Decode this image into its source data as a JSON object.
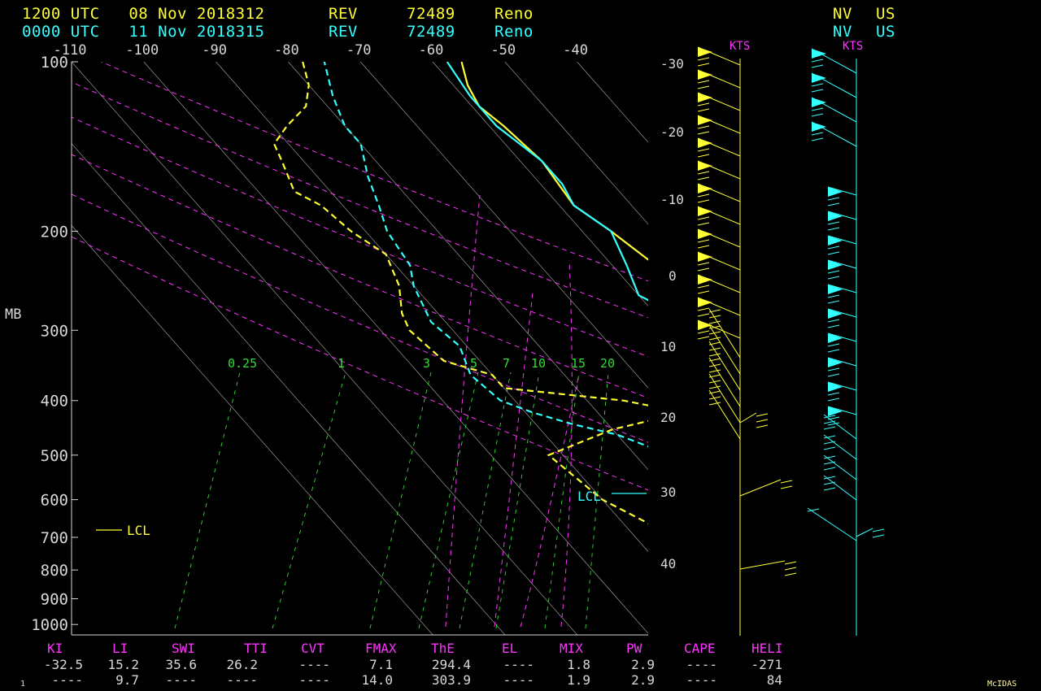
{
  "header": {
    "rows": [
      {
        "time": "1200 UTC",
        "date": "08 Nov 2018312",
        "kind": "REV",
        "station": "72489",
        "city": "Reno",
        "state": "NV",
        "country": "US",
        "color": "#ffff33"
      },
      {
        "time": "0000 UTC",
        "date": "11 Nov 2018315",
        "kind": "REV",
        "station": "72489",
        "city": "Reno",
        "state": "NV",
        "country": "US",
        "color": "#33ffff"
      }
    ]
  },
  "kts_label": "KTS",
  "mb_label": "MB",
  "footer_left": "1",
  "footer_right": "McIDAS",
  "colors": {
    "obs1": "#ffff33",
    "obs2": "#33ffff",
    "isotherm": "#b0b0b0",
    "adiabat": "#ff33ff",
    "mixing": "#33dd33",
    "text": "#d8d8d8",
    "label": "#ff33ff"
  },
  "indices": {
    "labels": [
      "KI",
      "LI",
      "SWI",
      "TTI",
      "CVT",
      "FMAX",
      "ThE",
      "EL",
      "MIX",
      "PW",
      "CAPE",
      "HELI"
    ],
    "row1": [
      "-32.5",
      "15.2",
      "35.6",
      "26.2",
      "----",
      "7.1",
      "294.4",
      "----",
      "1.8",
      "2.9",
      "----",
      "-271"
    ],
    "row2": [
      "----",
      "9.7",
      "----",
      "----",
      "----",
      "14.0",
      "303.9",
      "----",
      "1.9",
      "2.9",
      "----",
      "84"
    ]
  },
  "chart_data": {
    "type": "skew-t",
    "ylabel": "MB",
    "pressure_ticks": [
      "100",
      "200",
      "300",
      "400",
      "500",
      "600",
      "700",
      "800",
      "900",
      "1000"
    ],
    "temp_ticks": [
      "-110",
      "-100",
      "-90",
      "-80",
      "-70",
      "-60",
      "-50",
      "-40"
    ],
    "skewed_temp_labels": [
      "-30",
      "-20",
      "-10",
      "0",
      "10",
      "20",
      "30",
      "40"
    ],
    "mixing_ratio_labels": [
      "0.25",
      "1",
      "3",
      "5",
      "7",
      "10",
      "15",
      "20"
    ],
    "lcl_label": "LCL",
    "series": [
      {
        "name": "1200 UTC 08 Nov",
        "kind": "temperature",
        "p": [
          850,
          760,
          700,
          660,
          640,
          600,
          560,
          500,
          460,
          430,
          400,
          360,
          320,
          280,
          250,
          230,
          200,
          180,
          150,
          130,
          120,
          110,
          100
        ],
        "t": [
          -5,
          -6,
          -11,
          -13,
          -14,
          -16,
          -19,
          -24,
          -28,
          -32,
          -36,
          -42,
          -48,
          -53,
          -55,
          -54,
          -56,
          -58,
          -57,
          -58,
          -59,
          -58,
          -56
        ]
      },
      {
        "name": "1200 UTC 08 Nov",
        "kind": "dewpoint",
        "p": [
          850,
          800,
          760,
          720,
          710,
          700,
          690,
          600,
          500,
          450,
          420,
          400,
          380,
          360,
          340,
          300,
          280,
          250,
          220,
          200,
          180,
          170,
          150,
          140,
          130,
          120,
          110,
          100
        ],
        "t": [
          -40,
          -40,
          -39,
          -38,
          -45,
          -75,
          -85,
          -90,
          -92,
          -80,
          -68,
          -75,
          -90,
          -90,
          -95,
          -96,
          -95,
          -92,
          -90,
          -92,
          -93,
          -95,
          -93,
          -92,
          -88,
          -83,
          -80,
          -78
        ]
      },
      {
        "name": "0000 UTC 11 Nov",
        "kind": "temperature",
        "p": [
          850,
          800,
          750,
          700,
          670,
          640,
          600,
          560,
          500,
          450,
          420,
          400,
          360,
          320,
          290,
          260,
          230,
          200,
          180,
          165,
          150,
          130,
          115,
          100
        ],
        "t": [
          -2,
          -5,
          -9,
          -13,
          -15,
          -17,
          -19,
          -21,
          -25,
          -30,
          -33,
          -37,
          -44,
          -50,
          -56,
          -60,
          -58,
          -56,
          -58,
          -57,
          -57,
          -59,
          -59,
          -58
        ]
      },
      {
        "name": "0000 UTC 11 Nov",
        "kind": "dewpoint",
        "p": [
          850,
          830,
          780,
          720,
          700,
          690,
          640,
          600,
          580,
          560,
          520,
          500,
          460,
          440,
          420,
          400,
          360,
          320,
          290,
          250,
          230,
          200,
          180,
          160,
          140,
          130,
          115,
          100
        ],
        "t": [
          -40,
          -42,
          -40,
          -55,
          -70,
          -80,
          -85,
          -82,
          -78,
          -72,
          -72,
          -75,
          -80,
          -85,
          -89,
          -92,
          -93,
          -91,
          -92,
          -90,
          -88,
          -87,
          -85,
          -83,
          -80,
          -80,
          -78,
          -75
        ]
      }
    ]
  }
}
